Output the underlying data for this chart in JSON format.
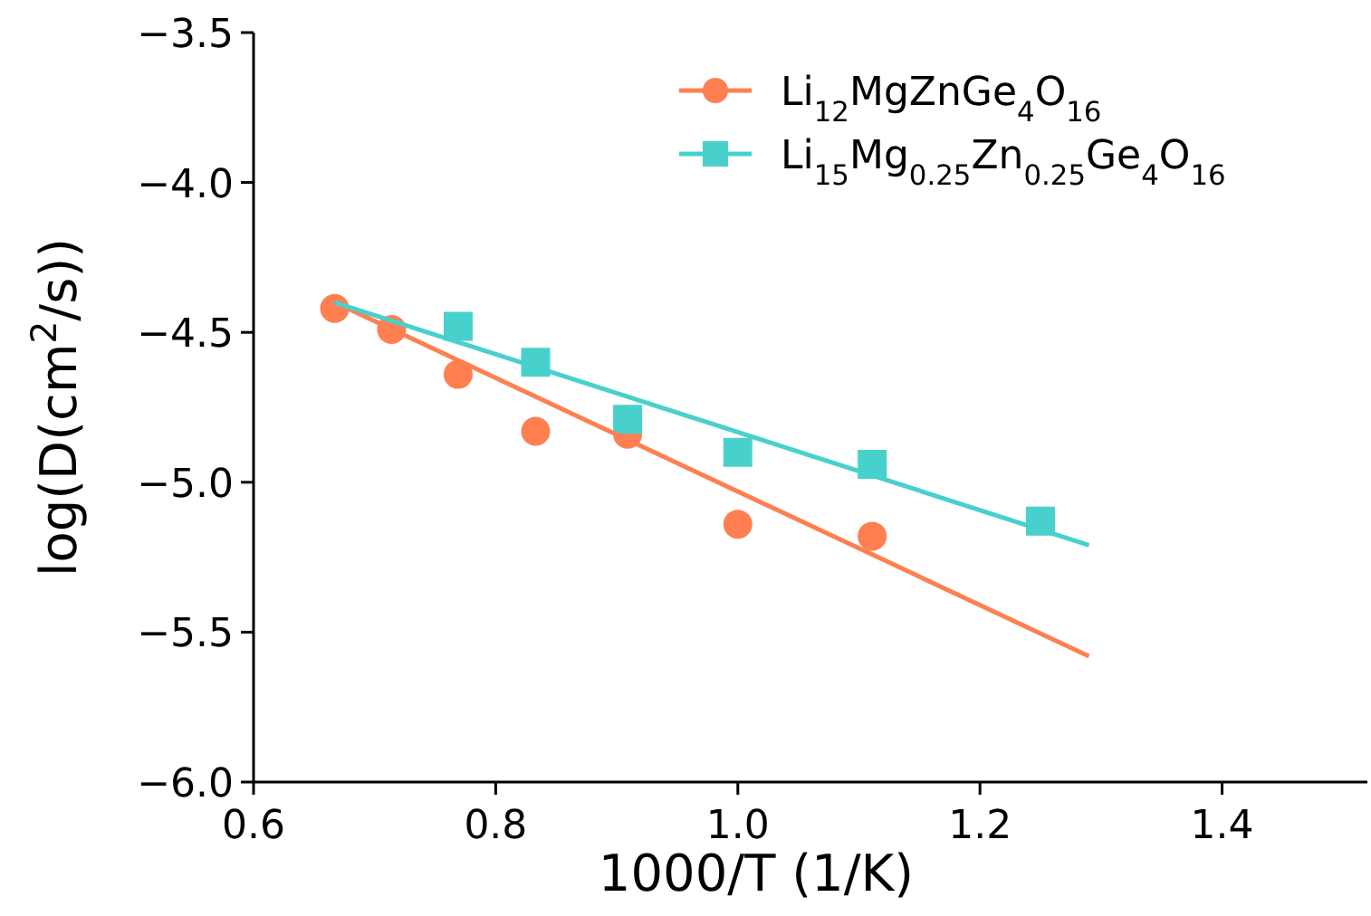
{
  "chart_data": {
    "type": "scatter",
    "xlabel": "1000/T (1/K)",
    "ylabel": "log(D(cm$^{2}$/s))",
    "xlim": [
      0.6,
      1.52
    ],
    "ylim": [
      -6.0,
      -3.5
    ],
    "xticks": [
      {
        "value": 0.6,
        "label": "0.6"
      },
      {
        "value": 0.8,
        "label": "0.8"
      },
      {
        "value": 1.0,
        "label": "1.0"
      },
      {
        "value": 1.2,
        "label": "1.2"
      },
      {
        "value": 1.4,
        "label": "1.4"
      }
    ],
    "yticks": [
      {
        "value": -6.0,
        "label": "−6.0"
      },
      {
        "value": -5.5,
        "label": "−5.5"
      },
      {
        "value": -5.0,
        "label": "−5.0"
      },
      {
        "value": -4.5,
        "label": "−4.5"
      },
      {
        "value": -4.0,
        "label": "−4.0"
      },
      {
        "value": -3.5,
        "label": "−3.5"
      }
    ],
    "grid": false,
    "legend": "top right",
    "series": [
      {
        "name": "Li$_{12}$MgZnGe$_{4}$O$_{16}$",
        "marker": "circle",
        "color": "#ff7f50",
        "x": [
          0.667,
          0.714,
          0.769,
          0.833,
          0.909,
          1.0,
          1.111
        ],
        "values": [
          -4.42,
          -4.49,
          -4.64,
          -4.83,
          -4.84,
          -5.14,
          -5.18
        ]
      },
      {
        "name": "Li$_{15}$Mg$_{0.25}$Zn$_{0.25}$Ge$_{4}$O$_{16}$",
        "marker": "square",
        "color": "#48d1cc",
        "x": [
          0.769,
          0.833,
          0.909,
          1.0,
          1.111,
          1.25
        ],
        "values": [
          -4.48,
          -4.6,
          -4.79,
          -4.9,
          -4.94,
          -5.13
        ]
      },
      {
        "type": "line",
        "color": "#ff7f50",
        "x": [
          0.667,
          1.29
        ],
        "values": [
          -4.4,
          -5.58
        ]
      },
      {
        "type": "line",
        "color": "#48d1cc",
        "x": [
          0.667,
          1.29
        ],
        "values": [
          -4.4,
          -5.21
        ]
      }
    ]
  }
}
